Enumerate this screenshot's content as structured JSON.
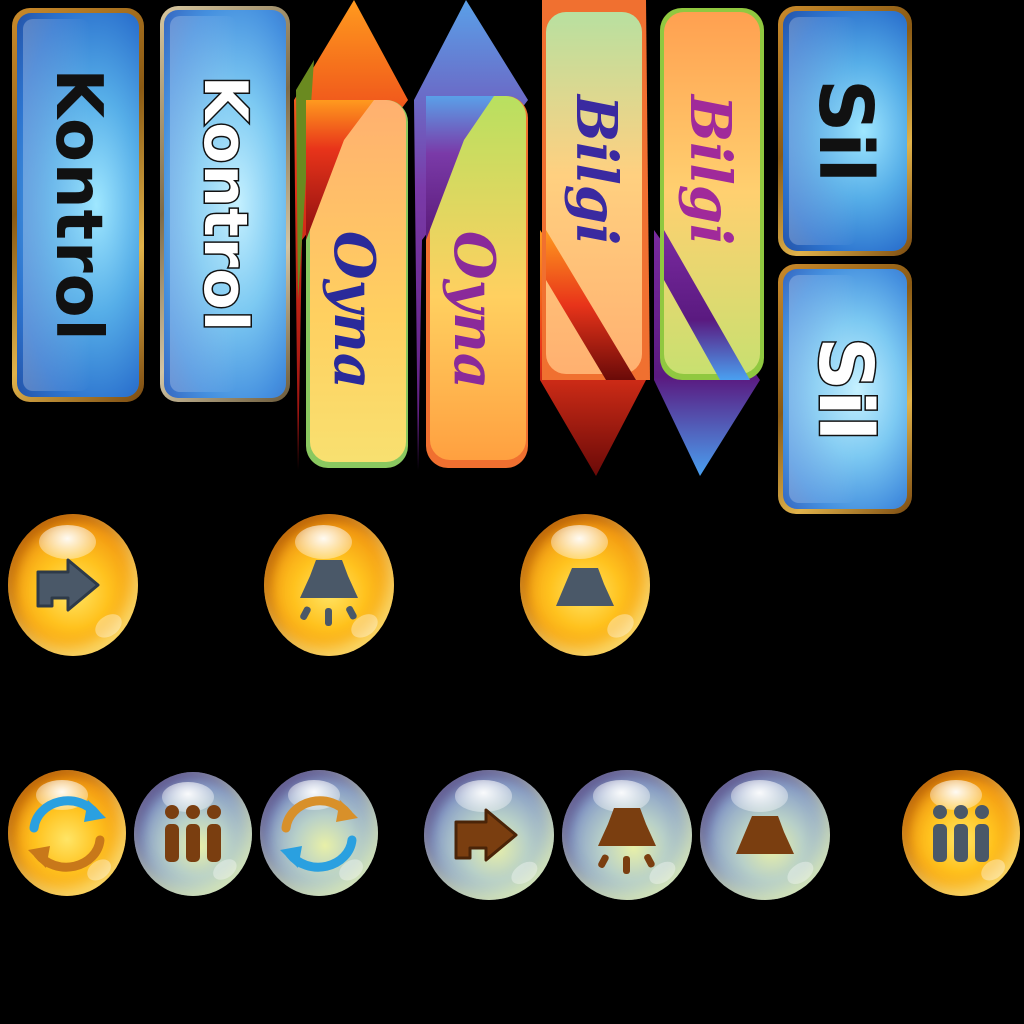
{
  "buttons": {
    "kontrol_dark": "Kontrol",
    "kontrol_light": "Kontrol",
    "okuma_1": "Oyna",
    "okuma_2": "Oyna",
    "bilgi_1": "Bilgi",
    "bilgi_2": "Bilgi",
    "sil_dark": "Sil",
    "sil_light": "Sil"
  },
  "icons": {
    "row1": [
      "next-arrow-icon",
      "lamp-on-icon",
      "lamp-off-icon"
    ],
    "row2": [
      "refresh-icon",
      "info-icon",
      "refresh-icon",
      "next-arrow-icon",
      "lamp-on-icon",
      "lamp-off-icon",
      "info-icon"
    ]
  },
  "colors": {
    "kontrol_text": "#111111",
    "oyna_text": "#2a2a9a",
    "oyna2_text": "#8a2a9a",
    "bilgi_text": "#3a2aa0",
    "bilgi2_text": "#a02a9a",
    "icon_dark": "#4a5868",
    "icon_brown": "#7a3e10"
  }
}
